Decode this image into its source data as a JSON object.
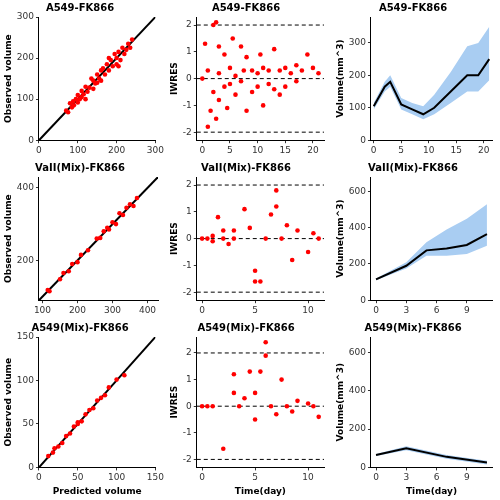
{
  "chart_data": [
    {
      "type": "scatter",
      "title": "A549-FK866",
      "y_label": "Observed volume",
      "x": [
        70,
        75,
        80,
        85,
        88,
        90,
        95,
        100,
        100,
        105,
        110,
        110,
        115,
        120,
        120,
        125,
        130,
        135,
        140,
        140,
        145,
        150,
        150,
        155,
        160,
        160,
        165,
        170,
        175,
        180,
        185,
        190,
        195,
        200,
        200,
        205,
        210,
        215,
        220,
        225,
        230,
        235,
        240,
        205,
        180
      ],
      "values": [
        72,
        68,
        90,
        80,
        95,
        85,
        100,
        92,
        110,
        100,
        120,
        105,
        112,
        130,
        100,
        118,
        128,
        150,
        125,
        145,
        138,
        160,
        140,
        150,
        170,
        145,
        175,
        160,
        185,
        170,
        195,
        180,
        210,
        185,
        200,
        215,
        195,
        225,
        210,
        220,
        235,
        225,
        245,
        180,
        200
      ],
      "diagonal": {
        "x": [
          0,
          300
        ],
        "values": [
          0,
          300
        ]
      },
      "color": "#ff0000",
      "marker": "circle",
      "xlim": [
        0,
        300
      ],
      "ylim": [
        0,
        300
      ],
      "xticks": [
        0,
        100,
        200,
        300
      ],
      "yticks": [
        0,
        100,
        200,
        300
      ],
      "grid": false
    },
    {
      "type": "scatter",
      "title": "A549-FK866",
      "y_label": "IWRES",
      "x": [
        0,
        0.5,
        1,
        1,
        1.5,
        2,
        2,
        2.5,
        2.5,
        3,
        3,
        3,
        4,
        4,
        4.5,
        5,
        5,
        5.5,
        6,
        6,
        7,
        7,
        7.5,
        8,
        8,
        9,
        9,
        10,
        10,
        10.5,
        11,
        11,
        12,
        12,
        13,
        13,
        14,
        14,
        15,
        15,
        16,
        17,
        17,
        18,
        19,
        20,
        21
      ],
      "values": [
        0,
        1.3,
        -1.8,
        0.3,
        -1.2,
        2.0,
        -0.5,
        2.1,
        -1.5,
        1.2,
        0.2,
        -0.8,
        -0.3,
        0.9,
        -1.1,
        0.4,
        -0.2,
        1.5,
        0.1,
        -0.6,
        1.2,
        -0.1,
        0.3,
        0.8,
        -1.2,
        0.3,
        -0.5,
        0.2,
        -0.3,
        0.9,
        0.4,
        -1.0,
        0.3,
        -0.2,
        1.1,
        -0.4,
        0.3,
        -0.6,
        0.4,
        -0.3,
        0.2,
        0.5,
        -0.1,
        0.3,
        0.9,
        0.4,
        0.2
      ],
      "hlines": [
        -2,
        0,
        2
      ],
      "color": "#ff0000",
      "marker": "circle",
      "xlim": [
        -1,
        22
      ],
      "ylim": [
        -2.3,
        2.3
      ],
      "xticks": [
        0,
        5,
        10,
        15,
        20
      ],
      "yticks": [
        -2,
        -1,
        0,
        1,
        2
      ],
      "grid": false
    },
    {
      "type": "line",
      "title": "A549-FK866",
      "y_label": "Volume(mm^3)",
      "x": [
        0,
        2,
        3,
        5,
        7,
        9,
        11,
        14,
        17,
        19,
        21
      ],
      "series": [
        {
          "values": [
            105,
            165,
            180,
            110,
            95,
            80,
            100,
            150,
            200,
            200,
            250
          ],
          "color": "#000000",
          "line_style": "solid"
        }
      ],
      "band": {
        "lower": [
          95,
          150,
          165,
          95,
          80,
          65,
          80,
          115,
          150,
          150,
          185
        ],
        "upper": [
          115,
          180,
          200,
          130,
          115,
          105,
          140,
          210,
          290,
          300,
          350
        ],
        "color": "#a9cdf2"
      },
      "xlim": [
        -0.5,
        21.5
      ],
      "ylim": [
        0,
        380
      ],
      "xticks": [
        0,
        5,
        10,
        15,
        20
      ],
      "yticks": [
        0,
        100,
        200,
        300
      ],
      "grid": false
    },
    {
      "type": "scatter",
      "title": "VaII(Mix)-FK866",
      "y_label": "Observed volume",
      "x": [
        115,
        120,
        150,
        160,
        175,
        185,
        200,
        210,
        230,
        255,
        265,
        275,
        285,
        290,
        300,
        310,
        320,
        330,
        340,
        350,
        360,
        370
      ],
      "values": [
        118,
        115,
        148,
        165,
        170,
        190,
        195,
        215,
        228,
        260,
        262,
        280,
        290,
        285,
        305,
        300,
        330,
        325,
        345,
        355,
        350,
        372
      ],
      "diagonal": {
        "x": [
          90,
          430
        ],
        "values": [
          90,
          430
        ]
      },
      "color": "#ff0000",
      "marker": "circle",
      "xlim": [
        90,
        430
      ],
      "ylim": [
        90,
        430
      ],
      "xticks": [
        100,
        200,
        300,
        400
      ],
      "yticks": [
        200,
        400
      ],
      "grid": false
    },
    {
      "type": "scatter",
      "title": "VaII(Mix)-FK866",
      "y_label": "IWRES",
      "x": [
        0,
        0.5,
        1,
        1,
        1.5,
        2,
        2,
        2.5,
        3,
        3,
        4,
        4.5,
        5,
        5,
        5.5,
        6,
        6.5,
        7,
        7,
        7.5,
        8,
        8.5,
        9,
        10,
        10.5,
        11
      ],
      "values": [
        0,
        0,
        0.1,
        -0.1,
        0.8,
        0.3,
        0,
        -0.2,
        0.3,
        0,
        1.1,
        0.4,
        -1.2,
        -1.6,
        -1.6,
        0,
        0.9,
        1.8,
        1.2,
        0,
        0.5,
        -0.8,
        0.3,
        -0.5,
        0.2,
        0
      ],
      "hlines": [
        -2,
        0,
        2
      ],
      "color": "#ff0000",
      "marker": "circle",
      "xlim": [
        -0.5,
        11.5
      ],
      "ylim": [
        -2.3,
        2.3
      ],
      "xticks": [
        0,
        5,
        10
      ],
      "yticks": [
        -2,
        -1,
        0,
        1,
        2
      ],
      "grid": false
    },
    {
      "type": "line",
      "title": "VaII(Mix)-FK866",
      "y_label": "Volume(mm^3)",
      "x": [
        0,
        3,
        5,
        7,
        9,
        11
      ],
      "series": [
        {
          "values": [
            115,
            190,
            275,
            285,
            305,
            365
          ],
          "color": "#000000",
          "line_style": "solid"
        }
      ],
      "band": {
        "lower": [
          110,
          175,
          245,
          245,
          255,
          300
        ],
        "upper": [
          120,
          210,
          320,
          390,
          450,
          530
        ],
        "color": "#a9cdf2"
      },
      "xlim": [
        -0.5,
        11.5
      ],
      "ylim": [
        0,
        680
      ],
      "xticks": [
        0,
        3,
        6,
        9
      ],
      "yticks": [
        0,
        200,
        400,
        600
      ],
      "grid": false
    },
    {
      "type": "scatter",
      "title": "A549(Mix)-FK866",
      "x_label": "Predicted volume",
      "y_label": "Observed volume",
      "x": [
        12,
        18,
        25,
        30,
        35,
        40,
        45,
        50,
        55,
        60,
        65,
        70,
        75,
        80,
        85,
        90,
        100,
        110,
        20,
        50
      ],
      "values": [
        13,
        17,
        24,
        28,
        36,
        39,
        47,
        50,
        53,
        61,
        66,
        68,
        77,
        80,
        83,
        92,
        101,
        106,
        22,
        52
      ],
      "diagonal": {
        "x": [
          0,
          150
        ],
        "values": [
          0,
          150
        ]
      },
      "color": "#ff0000",
      "marker": "circle",
      "xlim": [
        0,
        150
      ],
      "ylim": [
        0,
        150
      ],
      "xticks": [
        0,
        50,
        100,
        150
      ],
      "yticks": [
        0,
        50,
        100,
        150
      ],
      "grid": false
    },
    {
      "type": "scatter",
      "title": "A549(Mix)-FK866",
      "x_label": "Time(day)",
      "y_label": "IWRES",
      "x": [
        0,
        0.5,
        1,
        2,
        3,
        3,
        3.5,
        4,
        4.5,
        5,
        5,
        5.5,
        6,
        6,
        6.5,
        7,
        7.5,
        8,
        8.5,
        9,
        10,
        10.5,
        11
      ],
      "values": [
        0,
        0,
        0,
        -1.6,
        1.2,
        0.5,
        0,
        0.3,
        1.3,
        0.5,
        -0.5,
        1.3,
        2.4,
        1.9,
        0,
        -0.3,
        1.0,
        0,
        -0.2,
        0.2,
        0.1,
        0,
        -0.4
      ],
      "hlines": [
        -2,
        0,
        2
      ],
      "color": "#ff0000",
      "marker": "circle",
      "xlim": [
        -0.5,
        11.5
      ],
      "ylim": [
        -2.3,
        2.6
      ],
      "xticks": [
        0,
        5,
        10
      ],
      "yticks": [
        -2,
        -1,
        0,
        1,
        2
      ],
      "grid": false
    },
    {
      "type": "line",
      "title": "A549(Mix)-FK866",
      "x_label": "Time(day)",
      "y_label": "Volume(mm^3)",
      "x": [
        0,
        3,
        7,
        11
      ],
      "series": [
        {
          "values": [
            65,
            100,
            55,
            25
          ],
          "color": "#000000",
          "line_style": "solid"
        }
      ],
      "band": {
        "lower": [
          60,
          90,
          45,
          15
        ],
        "upper": [
          70,
          110,
          65,
          35
        ],
        "color": "#a9cdf2"
      },
      "xlim": [
        -0.5,
        11.5
      ],
      "ylim": [
        0,
        680
      ],
      "xticks": [
        0,
        3,
        6,
        9
      ],
      "yticks": [
        0,
        200,
        400,
        600
      ],
      "grid": false
    }
  ]
}
